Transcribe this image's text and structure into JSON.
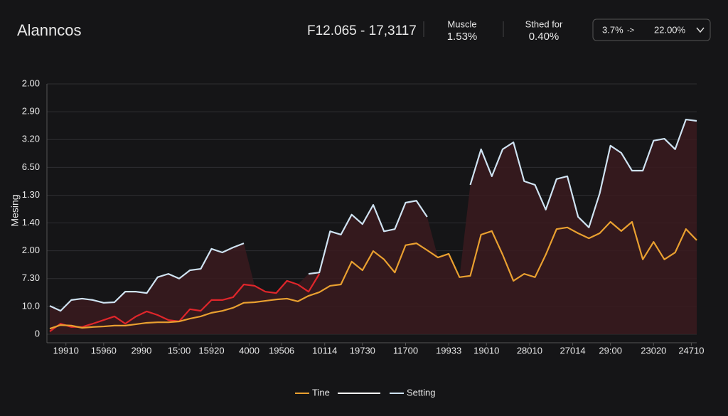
{
  "header": {
    "title": "Alanncos",
    "range": "F12.065 - 17,3117",
    "stat1_label": "Muscle",
    "stat1_value": "1.53%",
    "stat2_label": "Sthed for",
    "stat2_value": "0.40%",
    "select_from": "3.7%",
    "select_arrow": "->",
    "select_to": "22.00%"
  },
  "chart_data": {
    "type": "line",
    "ylabel": "Mesing",
    "x": [
      0,
      1,
      2,
      3,
      4,
      5,
      6,
      7,
      8,
      9,
      10,
      11,
      12,
      13,
      14,
      15,
      16,
      17,
      18,
      19,
      20,
      21,
      22,
      23,
      24,
      25,
      26,
      27,
      28,
      29,
      30,
      31,
      32,
      33,
      34,
      35,
      36,
      37,
      38,
      39,
      40,
      41,
      42,
      43,
      44,
      45,
      46,
      47,
      48,
      49,
      50,
      51,
      52,
      53,
      54,
      55,
      56,
      57,
      58,
      59,
      60
    ],
    "xlim": [
      0,
      60
    ],
    "xticks": [
      {
        "value": 1.5,
        "label": "19910"
      },
      {
        "value": 5,
        "label": "15960"
      },
      {
        "value": 8.5,
        "label": "2990"
      },
      {
        "value": 12,
        "label": "15:00"
      },
      {
        "value": 15,
        "label": "15920"
      },
      {
        "value": 18.5,
        "label": "4000"
      },
      {
        "value": 21.5,
        "label": "19506"
      },
      {
        "value": 25.5,
        "label": "10114"
      },
      {
        "value": 29,
        "label": "19730"
      },
      {
        "value": 33,
        "label": "11700"
      },
      {
        "value": 37,
        "label": "19933"
      },
      {
        "value": 40.5,
        "label": "19010"
      },
      {
        "value": 44.5,
        "label": "28010"
      },
      {
        "value": 48.5,
        "label": "27014"
      },
      {
        "value": 52,
        "label": "29:00"
      },
      {
        "value": 56,
        "label": "23020"
      },
      {
        "value": 59.5,
        "label": "24710"
      }
    ],
    "ylim": [
      0,
      9
    ],
    "yticks": [
      0,
      {
        "value": 1,
        "label": "10.0"
      },
      {
        "value": 2,
        "label": "7.30"
      },
      {
        "value": 3,
        "label": "2.00"
      },
      {
        "value": 4,
        "label": "1.40"
      },
      {
        "value": 5,
        "label": "1.30"
      },
      {
        "value": 6,
        "label": "6.50"
      },
      {
        "value": 7,
        "label": "3.20"
      },
      {
        "value": 8,
        "label": "2.90"
      },
      {
        "value": 9,
        "label": "2.00"
      }
    ],
    "grid": true,
    "area_color": "#3a1a1e",
    "series": [
      {
        "name": "Tine",
        "color": "#e9a030",
        "values": [
          0.2,
          0.33,
          0.31,
          0.23,
          0.26,
          0.28,
          0.31,
          0.31,
          0.36,
          0.41,
          0.43,
          0.43,
          0.46,
          0.56,
          0.64,
          0.77,
          0.84,
          0.95,
          1.13,
          1.15,
          1.2,
          1.25,
          1.28,
          1.18,
          1.38,
          1.51,
          1.74,
          1.79,
          2.61,
          2.3,
          2.99,
          2.69,
          2.22,
          3.2,
          3.27,
          3.02,
          2.76,
          2.89,
          2.05,
          2.1,
          3.58,
          3.71,
          2.86,
          1.92,
          2.17,
          2.05,
          2.86,
          3.78,
          3.84,
          3.63,
          3.45,
          3.63,
          4.04,
          3.71,
          4.04,
          2.69,
          3.32,
          2.69,
          2.94,
          3.78,
          3.38
        ]
      },
      {
        "name": "Setting",
        "color": "#cfe3f2",
        "values": [
          1.02,
          0.84,
          1.23,
          1.28,
          1.23,
          1.13,
          1.15,
          1.53,
          1.53,
          1.48,
          2.05,
          2.17,
          2.0,
          2.3,
          2.35,
          3.07,
          2.94,
          3.12,
          3.27,
          null,
          null,
          null,
          null,
          null,
          2.17,
          2.22,
          3.7,
          3.58,
          4.3,
          3.96,
          4.65,
          3.7,
          3.78,
          4.73,
          4.8,
          4.22,
          null,
          null,
          null,
          5.37,
          6.65,
          5.68,
          6.65,
          6.9,
          5.5,
          5.37,
          4.48,
          5.58,
          5.68,
          4.22,
          3.84,
          5.06,
          6.78,
          6.52,
          5.88,
          5.88,
          6.96,
          7.03,
          6.65,
          7.72,
          7.67
        ]
      },
      {
        "color": "#e0262b",
        "values": [
          0.1,
          0.38,
          0.26,
          0.26,
          0.38,
          0.51,
          0.64,
          0.38,
          0.64,
          0.82,
          0.69,
          0.51,
          0.46,
          0.9,
          0.84,
          1.23,
          1.23,
          1.33,
          1.79,
          1.74,
          1.53,
          1.48,
          1.92,
          1.79,
          1.53,
          2.17,
          null,
          null,
          null,
          null,
          null,
          null,
          null,
          null,
          null,
          null,
          null,
          null,
          null,
          null,
          null,
          null,
          null,
          null,
          null,
          null,
          null,
          null,
          null,
          null,
          null,
          null,
          null,
          null,
          null,
          null,
          null,
          null,
          null,
          null,
          null
        ]
      }
    ]
  }
}
